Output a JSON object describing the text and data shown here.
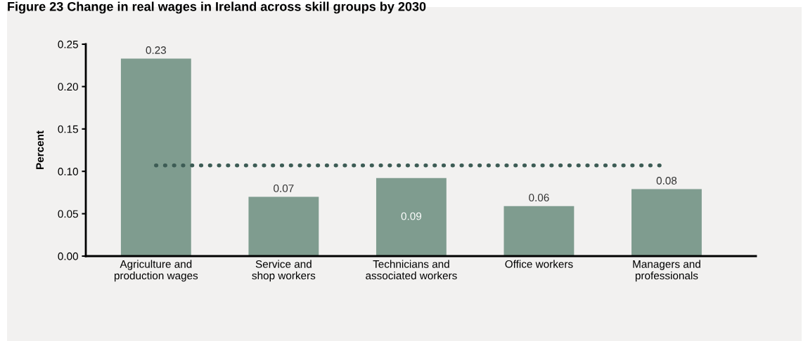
{
  "chart_data": {
    "type": "bar",
    "title": "Figure 23 Change in real wages in Ireland across skill groups by 2030",
    "ylabel": "Percent",
    "categories": [
      "Agriculture and\nproduction wages",
      "Service and\nshop workers",
      "Technicians and\nassociated workers",
      "Office workers",
      "Managers and\nprofessionals"
    ],
    "values": [
      0.233,
      0.07,
      0.092,
      0.059,
      0.079
    ],
    "value_labels": [
      "0.23",
      "0.07",
      "0.09",
      "0.06",
      "0.08"
    ],
    "color": "#7f9c8f",
    "ylim": [
      0,
      0.25
    ],
    "yticks": [
      {
        "value": 0,
        "label": "0.00"
      },
      {
        "value": 0.05,
        "label": "0.05"
      },
      {
        "value": 0.1,
        "label": "0.10"
      },
      {
        "value": 0.15,
        "label": "0.15"
      },
      {
        "value": 0.2,
        "label": "0.20"
      },
      {
        "value": 0.25,
        "label": "0.25"
      }
    ],
    "ref_lines": [
      {
        "axis": "y",
        "value": 0.107,
        "color": "#3d5c55",
        "line_style": "dotted"
      }
    ],
    "grid": false
  }
}
